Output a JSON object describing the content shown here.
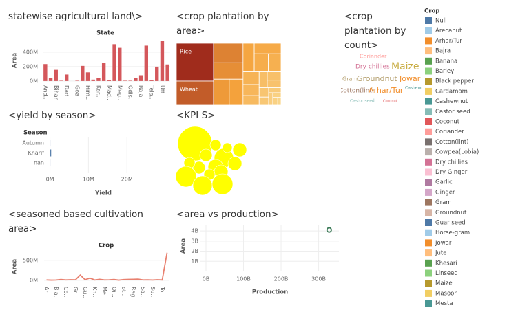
{
  "chart_data": [
    {
      "type": "bar",
      "title": "statewise agricultural land\\>",
      "header": "State",
      "y_label": "Area",
      "categories": [
        "And..",
        null,
        "Bihar",
        null,
        "Dad..",
        null,
        "Goa",
        null,
        "Him..",
        null,
        "Kar..",
        null,
        "Mad..",
        null,
        "Meg..",
        null,
        "Odis..",
        null,
        "Raja",
        null,
        "Tela..",
        null,
        "Utt..",
        null
      ],
      "values": [
        235,
        40,
        155,
        5,
        90,
        0,
        5,
        210,
        120,
        20,
        40,
        250,
        10,
        510,
        460,
        5,
        5,
        40,
        80,
        490,
        10,
        200,
        560,
        230
      ],
      "color": "#d4575b",
      "ylim": [
        -20,
        580
      ],
      "yticks": [
        {
          "value": 0,
          "label": "0M"
        },
        {
          "value": 200,
          "label": "200M"
        },
        {
          "value": 400,
          "label": "400M"
        }
      ],
      "grid": true
    },
    {
      "type": "treemap",
      "title": "<crop plantation by area>",
      "categories": [
        "Rice",
        "Wheat",
        null,
        null,
        null,
        null,
        null,
        null,
        null,
        null,
        null,
        null,
        null,
        null,
        null,
        null,
        null,
        null,
        null,
        null,
        null,
        null,
        null
      ],
      "values": [
        110,
        70,
        45,
        38,
        32,
        28,
        25,
        22,
        20,
        18,
        16,
        14,
        12,
        10,
        9,
        8,
        7,
        6,
        5,
        4,
        3,
        3,
        2
      ],
      "color_scale": [
        "#fbe7a6",
        "#f5a33c",
        "#a02c1c"
      ]
    },
    {
      "type": "wordcloud",
      "title": "<crop plantation by count>",
      "categories": [
        "Coriander",
        "Dry chillies",
        "Maize",
        "Gram",
        "Groundnut",
        "Jowar",
        "Cotton(lint)",
        "Arhar/Tur",
        "Cashewnut",
        "Castor seed",
        "Coconut"
      ],
      "values": [
        8,
        9,
        14,
        8,
        11,
        11,
        9,
        11,
        6,
        6,
        5
      ],
      "colors": [
        "#ff9d9a",
        "#d37295",
        "#c9ad45",
        "#b5a06f",
        "#b5a06f",
        "#f28e2b",
        "#9d7660",
        "#f28e2b",
        "#499894",
        "#86bcb6",
        "#e15759"
      ]
    },
    {
      "type": "hbar",
      "title": "<yield by season>",
      "header": "Season",
      "x_label": "Yield",
      "categories": [
        "Autumn",
        "Kharif",
        "nan"
      ],
      "values": [
        0.05,
        0.3,
        0.02
      ],
      "color": "#4e79a7",
      "xlim": [
        -1,
        30
      ],
      "xticks": [
        {
          "value": 0,
          "label": "0M"
        },
        {
          "value": 10,
          "label": "10M"
        },
        {
          "value": 20,
          "label": "20M"
        }
      ],
      "grid": true
    },
    {
      "type": "bubble",
      "title": "<KPI S>",
      "color": "#ffff00",
      "values": [
        625,
        196,
        64,
        100,
        100,
        81,
        49,
        121,
        81,
        64,
        100,
        64,
        225,
        196,
        225
      ]
    },
    {
      "type": "line",
      "title": "<seasoned based cultivation area>",
      "header": "Crop",
      "y_label": "Area",
      "categories": [
        "Ar..",
        null,
        "Bla..",
        null,
        "Co..",
        null,
        "Gr..",
        null,
        "Gu..",
        null,
        "Kh..",
        null,
        "Me..",
        null,
        "Oil..",
        null,
        "ot..",
        null,
        "Ragi",
        null,
        "Sa..",
        null,
        "Su..",
        null,
        "To..",
        null
      ],
      "values": [
        10,
        5,
        8,
        20,
        10,
        15,
        12,
        130,
        15,
        55,
        8,
        25,
        10,
        12,
        20,
        5,
        18,
        22,
        25,
        30,
        10,
        12,
        8,
        15,
        10,
        690
      ],
      "color": "#e8806f",
      "ylim": [
        -20,
        720
      ],
      "yticks": [
        {
          "value": 0,
          "label": "0M"
        },
        {
          "value": 500,
          "label": "500M"
        }
      ],
      "grid": true
    },
    {
      "type": "scatter",
      "title": "<area vs production>",
      "x_label": "Production",
      "y_label": "Area",
      "x": [
        328
      ],
      "y": [
        4.1
      ],
      "color": "#3b7a57",
      "xlim": [
        -16.5,
        354
      ],
      "ylim": [
        0,
        4.55
      ],
      "xticks": [
        {
          "value": 0,
          "label": "0B"
        },
        {
          "value": 100,
          "label": "100B"
        },
        {
          "value": 200,
          "label": "200B"
        },
        {
          "value": 300,
          "label": "300B"
        }
      ],
      "yticks": [
        {
          "value": 1,
          "label": "1B"
        },
        {
          "value": 2,
          "label": "2B"
        },
        {
          "value": 3,
          "label": "3B"
        },
        {
          "value": 4,
          "label": "4B"
        }
      ],
      "grid": true
    }
  ],
  "legend": {
    "title": "Crop",
    "items": [
      {
        "name": "Null",
        "color": "#4e79a7"
      },
      {
        "name": "Arecanut",
        "color": "#a0cbe8"
      },
      {
        "name": "Arhar/Tur",
        "color": "#f28e2b"
      },
      {
        "name": "Bajra",
        "color": "#ffbe7d"
      },
      {
        "name": "Banana",
        "color": "#59a14f"
      },
      {
        "name": "Barley",
        "color": "#8cd17d"
      },
      {
        "name": "Black pepper",
        "color": "#b6992d"
      },
      {
        "name": "Cardamom",
        "color": "#f1ce63"
      },
      {
        "name": "Cashewnut",
        "color": "#499894"
      },
      {
        "name": "Castor seed",
        "color": "#86bcb6"
      },
      {
        "name": "Coconut",
        "color": "#e15759"
      },
      {
        "name": "Coriander",
        "color": "#ff9d9a"
      },
      {
        "name": "Cotton(lint)",
        "color": "#79706e"
      },
      {
        "name": "Cowpea(Lobia)",
        "color": "#bab0ac"
      },
      {
        "name": "Dry chillies",
        "color": "#d37295"
      },
      {
        "name": "Dry Ginger",
        "color": "#fabfd2"
      },
      {
        "name": "Garlic",
        "color": "#b07aa1"
      },
      {
        "name": "Ginger",
        "color": "#d4a6c8"
      },
      {
        "name": "Gram",
        "color": "#9d7660"
      },
      {
        "name": "Groundnut",
        "color": "#d7b5a6"
      },
      {
        "name": "Guar seed",
        "color": "#4e79a7"
      },
      {
        "name": "Horse-gram",
        "color": "#a0cbe8"
      },
      {
        "name": "Jowar",
        "color": "#f28e2b"
      },
      {
        "name": "Jute",
        "color": "#ffbe7d"
      },
      {
        "name": "Khesari",
        "color": "#59a14f"
      },
      {
        "name": "Linseed",
        "color": "#8cd17d"
      },
      {
        "name": "Maize",
        "color": "#b6992d"
      },
      {
        "name": "Masoor",
        "color": "#f1ce63"
      },
      {
        "name": "Mesta",
        "color": "#499894"
      }
    ]
  }
}
